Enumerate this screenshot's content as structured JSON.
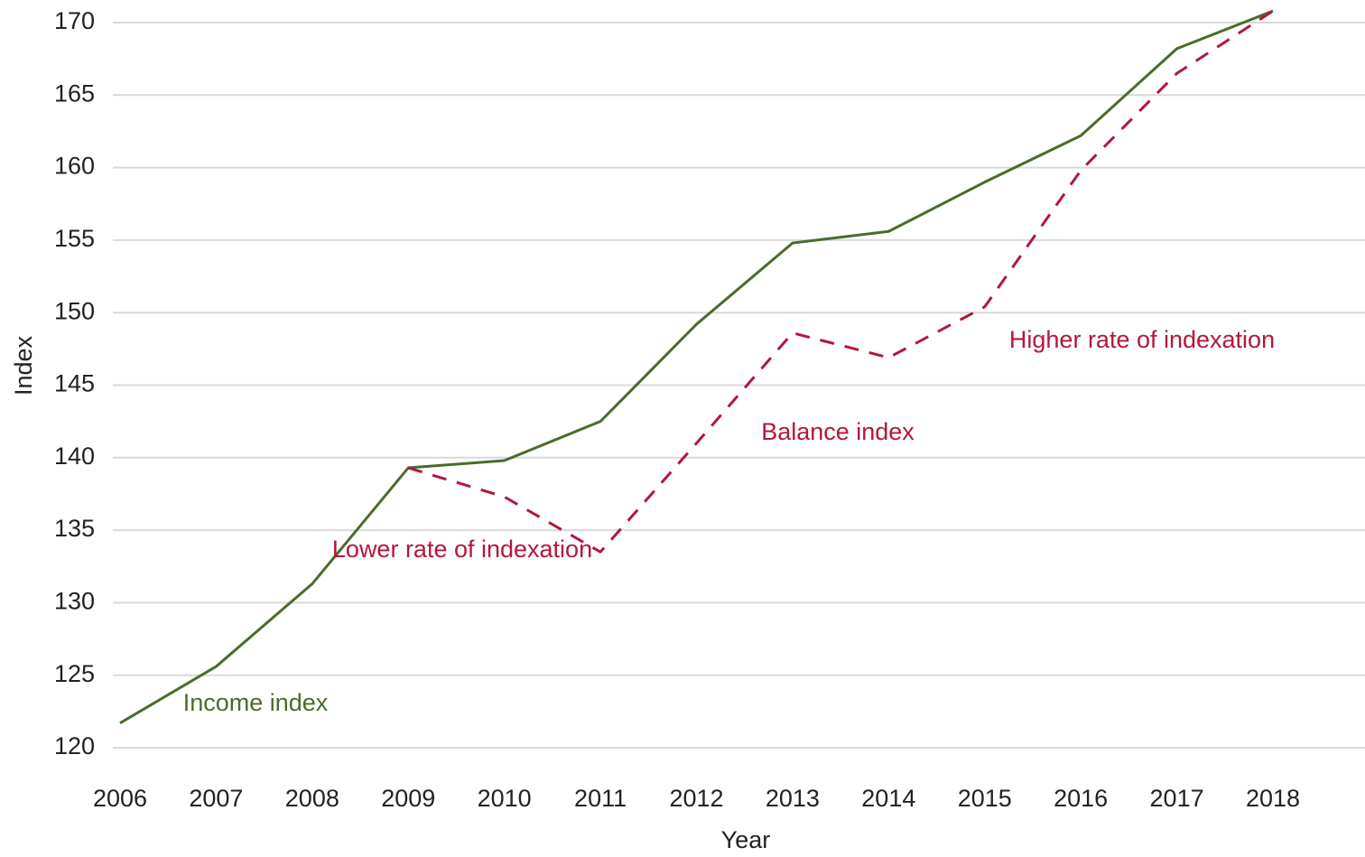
{
  "chart_data": {
    "type": "line",
    "x_label": "Year",
    "y_label": "Index",
    "x": [
      2006,
      2007,
      2008,
      2009,
      2010,
      2011,
      2012,
      2013,
      2014,
      2015,
      2016,
      2017,
      2018
    ],
    "xlim": [
      2006,
      2018
    ],
    "xticks": [
      2006,
      2007,
      2008,
      2009,
      2010,
      2011,
      2012,
      2013,
      2014,
      2015,
      2016,
      2017,
      2018
    ],
    "ylim": [
      120,
      170
    ],
    "yticks": [
      120,
      125,
      130,
      135,
      140,
      145,
      150,
      155,
      160,
      165,
      170
    ],
    "grid": true,
    "series": [
      {
        "name": "Income index",
        "color": "#4b6b2b",
        "dash": false,
        "values": [
          121.7,
          125.6,
          131.3,
          139.3,
          139.8,
          142.5,
          149.2,
          154.8,
          155.6,
          159.0,
          162.2,
          168.2,
          170.8
        ]
      },
      {
        "name": "Balance index",
        "color": "#b3173b",
        "dash": true,
        "values": [
          null,
          null,
          null,
          139.3,
          137.3,
          133.5,
          141.0,
          148.6,
          146.9,
          150.4,
          159.8,
          166.5,
          170.8
        ]
      }
    ],
    "annotations": [
      {
        "text": "Lower rate of indexation",
        "color": "#b3173b"
      },
      {
        "text": "Higher rate of indexation",
        "color": "#b3173b"
      }
    ]
  }
}
